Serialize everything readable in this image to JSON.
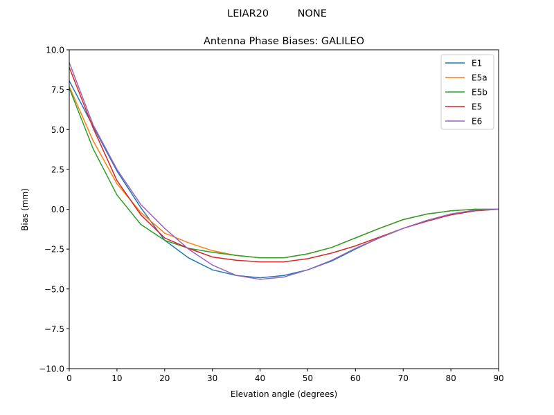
{
  "suptitle": "LEIAR20         NONE",
  "chart_data": {
    "type": "line",
    "title": "Antenna Phase Biases: GALILEO",
    "xlabel": "Elevation angle (degrees)",
    "ylabel": "Bias (mm)",
    "xlim": [
      0,
      90
    ],
    "ylim": [
      -10,
      10
    ],
    "xticks": [
      0,
      10,
      20,
      30,
      40,
      50,
      60,
      70,
      80,
      90
    ],
    "xtick_labels": [
      "0",
      "10",
      "20",
      "30",
      "40",
      "50",
      "60",
      "70",
      "80",
      "90"
    ],
    "yticks": [
      10,
      7.5,
      5,
      2.5,
      0,
      -2.5,
      -5,
      -7.5,
      -10
    ],
    "ytick_labels": [
      "10.0",
      "7.5",
      "5.0",
      "2.5",
      "0.0",
      "−2.5",
      "−5.0",
      "−7.5",
      "−10.0"
    ],
    "grid": false,
    "legend_position": "top-right",
    "x": [
      0,
      5,
      10,
      15,
      20,
      25,
      30,
      35,
      40,
      45,
      50,
      55,
      60,
      65,
      70,
      75,
      80,
      85,
      90
    ],
    "series": [
      {
        "name": "E1",
        "color": "#1f77b4",
        "values": [
          8.05,
          5.2,
          2.4,
          0.1,
          -1.95,
          -3.05,
          -3.8,
          -4.15,
          -4.3,
          -4.15,
          -3.8,
          -3.25,
          -2.5,
          -1.8,
          -1.2,
          -0.7,
          -0.35,
          -0.1,
          0
        ]
      },
      {
        "name": "E5a",
        "color": "#ff7f0e",
        "values": [
          7.7,
          4.3,
          1.6,
          -0.2,
          -1.5,
          -2.1,
          -2.6,
          -2.9,
          -3.05,
          -3.05,
          -2.8,
          -2.4,
          -1.8,
          -1.2,
          -0.65,
          -0.3,
          -0.1,
          0,
          0
        ]
      },
      {
        "name": "E5b",
        "color": "#2ca02c",
        "values": [
          7.6,
          3.8,
          0.9,
          -0.95,
          -1.95,
          -2.45,
          -2.7,
          -2.9,
          -3.05,
          -3.05,
          -2.8,
          -2.4,
          -1.8,
          -1.2,
          -0.65,
          -0.3,
          -0.1,
          0,
          0
        ]
      },
      {
        "name": "E5",
        "color": "#d62728",
        "values": [
          8.9,
          5.1,
          1.8,
          -0.35,
          -1.8,
          -2.45,
          -3.0,
          -3.2,
          -3.3,
          -3.3,
          -3.1,
          -2.75,
          -2.3,
          -1.75,
          -1.2,
          -0.75,
          -0.35,
          -0.1,
          0
        ]
      },
      {
        "name": "E6",
        "color": "#9467bd",
        "values": [
          9.2,
          5.3,
          2.5,
          0.3,
          -1.2,
          -2.5,
          -3.5,
          -4.15,
          -4.4,
          -4.25,
          -3.8,
          -3.2,
          -2.45,
          -1.8,
          -1.2,
          -0.7,
          -0.3,
          -0.05,
          0
        ]
      }
    ]
  }
}
